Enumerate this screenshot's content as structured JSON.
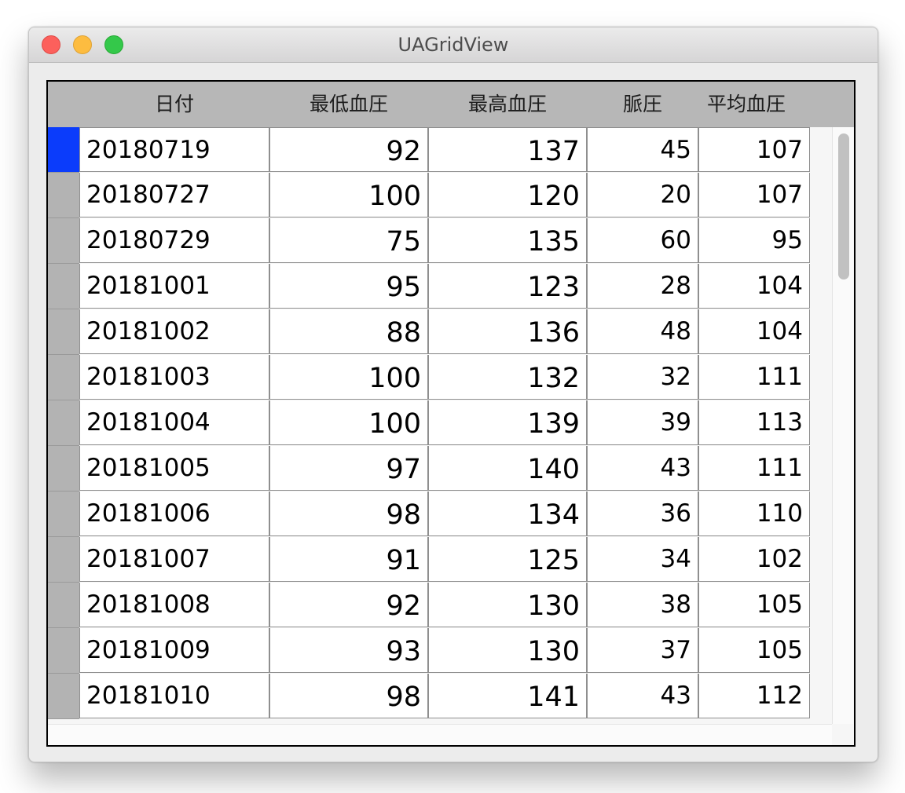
{
  "window": {
    "title": "UAGridView"
  },
  "grid": {
    "columns": [
      "日付",
      "最低血圧",
      "最高血圧",
      "脈圧",
      "平均血圧"
    ],
    "selected_row_index": 0,
    "rows": [
      {
        "date": "20180719",
        "min": "92",
        "max": "137",
        "pulse": "45",
        "avg": "107"
      },
      {
        "date": "20180727",
        "min": "100",
        "max": "120",
        "pulse": "20",
        "avg": "107"
      },
      {
        "date": "20180729",
        "min": "75",
        "max": "135",
        "pulse": "60",
        "avg": "95"
      },
      {
        "date": "20181001",
        "min": "95",
        "max": "123",
        "pulse": "28",
        "avg": "104"
      },
      {
        "date": "20181002",
        "min": "88",
        "max": "136",
        "pulse": "48",
        "avg": "104"
      },
      {
        "date": "20181003",
        "min": "100",
        "max": "132",
        "pulse": "32",
        "avg": "111"
      },
      {
        "date": "20181004",
        "min": "100",
        "max": "139",
        "pulse": "39",
        "avg": "113"
      },
      {
        "date": "20181005",
        "min": "97",
        "max": "140",
        "pulse": "43",
        "avg": "111"
      },
      {
        "date": "20181006",
        "min": "98",
        "max": "134",
        "pulse": "36",
        "avg": "110"
      },
      {
        "date": "20181007",
        "min": "91",
        "max": "125",
        "pulse": "34",
        "avg": "102"
      },
      {
        "date": "20181008",
        "min": "92",
        "max": "130",
        "pulse": "38",
        "avg": "105"
      },
      {
        "date": "20181009",
        "min": "93",
        "max": "130",
        "pulse": "37",
        "avg": "105"
      },
      {
        "date": "20181010",
        "min": "98",
        "max": "141",
        "pulse": "43",
        "avg": "112"
      }
    ]
  },
  "colors": {
    "selected_row_marker": "#0b3cfb",
    "row_header": "#b3b3b3",
    "column_header": "#b7b7b7"
  },
  "icons": {
    "close": "close-traffic-light-icon",
    "minimize": "minimize-traffic-light-icon",
    "zoom": "zoom-traffic-light-icon"
  }
}
